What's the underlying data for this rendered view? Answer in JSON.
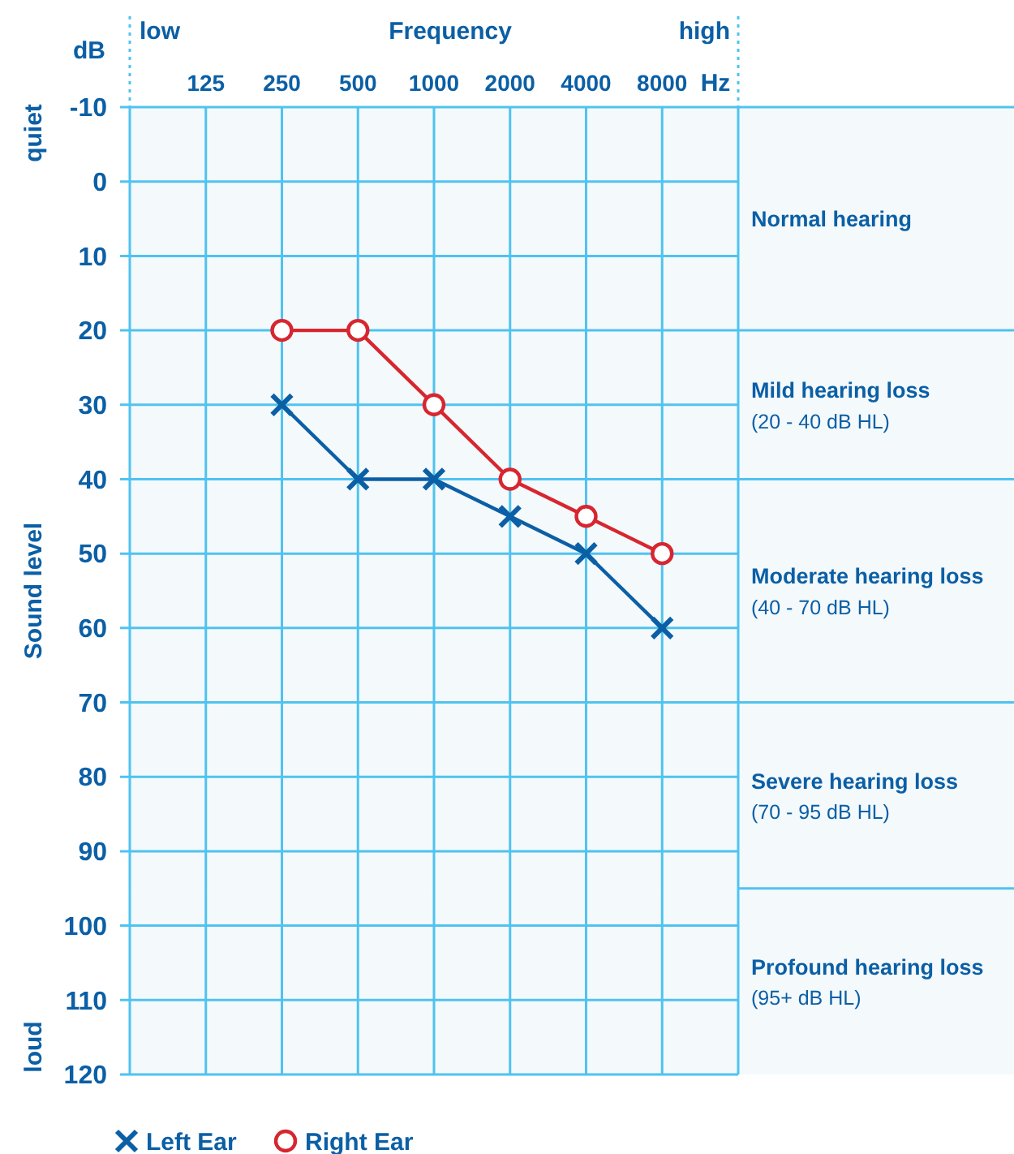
{
  "chart_data": {
    "type": "line",
    "xlabel": "Frequency",
    "ylabel": "Sound level",
    "categories": [
      "125",
      "250",
      "500",
      "1000",
      "2000",
      "4000",
      "8000"
    ],
    "ylim": [
      120,
      -10
    ],
    "yticks": [
      -10,
      0,
      10,
      20,
      30,
      40,
      50,
      60,
      70,
      80,
      90,
      100,
      110,
      120
    ],
    "grid": true,
    "legend": "bottom left",
    "series": [
      {
        "name": "Left Ear",
        "color": "#0b5fa5",
        "marker": "cross",
        "values": [
          null,
          30,
          40,
          40,
          45,
          50,
          60
        ]
      },
      {
        "name": "Right Ear",
        "color": "#d7262f",
        "marker": "circle",
        "values": [
          null,
          20,
          20,
          30,
          40,
          45,
          50
        ]
      }
    ],
    "bands": [
      {
        "axis": "y",
        "from": -10,
        "to": 20,
        "label": "Normal hearing",
        "color": "#f4f9fc"
      },
      {
        "axis": "y",
        "from": 20,
        "to": 40,
        "label": "Mild hearing loss\n(20 - 40 dB HL)",
        "color": "#f4f9fc"
      },
      {
        "axis": "y",
        "from": 40,
        "to": 70,
        "label": "Moderate hearing loss\n(40 - 70 dB HL)",
        "color": "#f4f9fc"
      },
      {
        "axis": "y",
        "from": 70,
        "to": 95,
        "label": "Severe hearing loss\n(70 - 95 dB HL)",
        "color": "#f4f9fc"
      },
      {
        "axis": "y",
        "from": 95,
        "to": 120,
        "label": "Profound hearing loss\n(95+ dB HL)",
        "color": "#f4f9fc"
      }
    ],
    "annotations": [
      "low",
      "high",
      "Hz",
      "dB",
      "quiet",
      "loud"
    ]
  }
}
